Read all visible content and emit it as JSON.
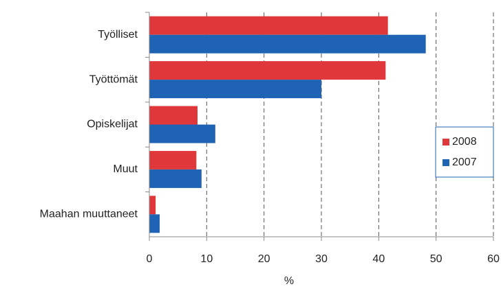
{
  "chart_data": {
    "type": "barh",
    "categories": [
      "Työlliset",
      "Työttömät",
      "Opiskelijat",
      "Muut",
      "Maahan muuttaneet"
    ],
    "series": [
      {
        "name": "2008",
        "color": "#e0373a",
        "values": [
          41.6,
          41.2,
          8.4,
          8.2,
          1.1
        ]
      },
      {
        "name": "2007",
        "color": "#1f63b5",
        "values": [
          48.2,
          30,
          11.5,
          9.1,
          1.8
        ]
      }
    ],
    "xlabel": "%",
    "xlim": [
      0,
      60
    ],
    "xticks": [
      0,
      10,
      20,
      30,
      40,
      50,
      60
    ],
    "grid": true,
    "legend": "right"
  }
}
